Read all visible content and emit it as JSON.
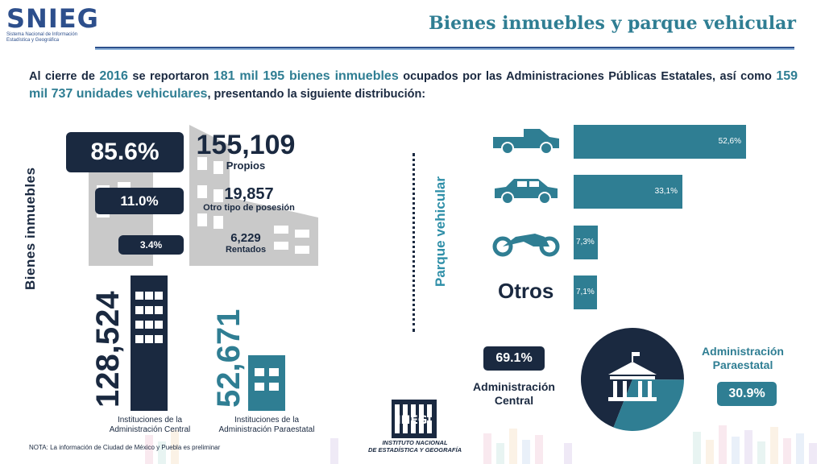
{
  "header": {
    "logo_text": "SNIEG",
    "logo_subtitle_1": "Sistema Nacional de Información",
    "logo_subtitle_2": "Estadística y Geográfica",
    "title": "Bienes inmuebles y parque vehicular"
  },
  "intro": {
    "p1": "Al cierre de ",
    "year": "2016",
    "p2": " se reportaron ",
    "bienes": "181 mil 195 bienes inmuebles",
    "p3": " ocupados por las Administraciones Públicas Estatales, así como ",
    "vehiculos": "159 mil 737 unidades vehiculares",
    "p4": ", presentando la siguiente distribución:"
  },
  "bienes": {
    "label": "Bienes inmuebles",
    "items": [
      {
        "pct": "85.6%",
        "value": "155,109",
        "label": "Propios"
      },
      {
        "pct": "11.0%",
        "value": "19,857",
        "label": "Otro tipo de posesión"
      },
      {
        "pct": "3.4%",
        "value": "6,229",
        "label": "Rentados"
      }
    ],
    "central": {
      "value": "128,524",
      "label_1": "Instituciones de la",
      "label_2": "Administración Central"
    },
    "paraestatal": {
      "value": "52,671",
      "label_1": "Instituciones de la",
      "label_2": "Administración Paraestatal"
    }
  },
  "vehicular": {
    "label": "Parque vehicular",
    "otros_label": "Otros",
    "icons": [
      "pickup-truck-icon",
      "car-icon",
      "motorcycle-icon"
    ],
    "colors": {
      "dark": "#1a2940",
      "teal": "#2f7e93"
    }
  },
  "chart_data": [
    {
      "type": "bar",
      "orientation": "horizontal",
      "categories": [
        "pickup-truck-icon",
        "car-icon",
        "motorcycle-icon",
        "Otros"
      ],
      "values": [
        52.6,
        33.1,
        7.3,
        7.1
      ],
      "labels": [
        "52,6%",
        "33,1%",
        "7,3%",
        "7,1%"
      ],
      "xlim": [
        0,
        52.6
      ],
      "grid": false
    },
    {
      "type": "pie",
      "categories": [
        "Administración Central",
        "Administración Paraestatal"
      ],
      "values": [
        69.1,
        30.9
      ],
      "labels": [
        "69.1%",
        "30.9%"
      ],
      "colors": [
        "#1a2940",
        "#2f7e93"
      ]
    }
  ],
  "pie_labels": {
    "central_1": "Administración",
    "central_2": "Central",
    "paraestatal_1": "Administración",
    "paraestatal_2": "Paraestatal"
  },
  "footer": {
    "note": "NOTA: La información de Ciudad de México y Puebla es preliminar",
    "inegi_logo": "INEGI",
    "inegi_1": "INSTITUTO NACIONAL",
    "inegi_2": "DE ESTADÍSTICA Y GEOGRAFÍA"
  }
}
